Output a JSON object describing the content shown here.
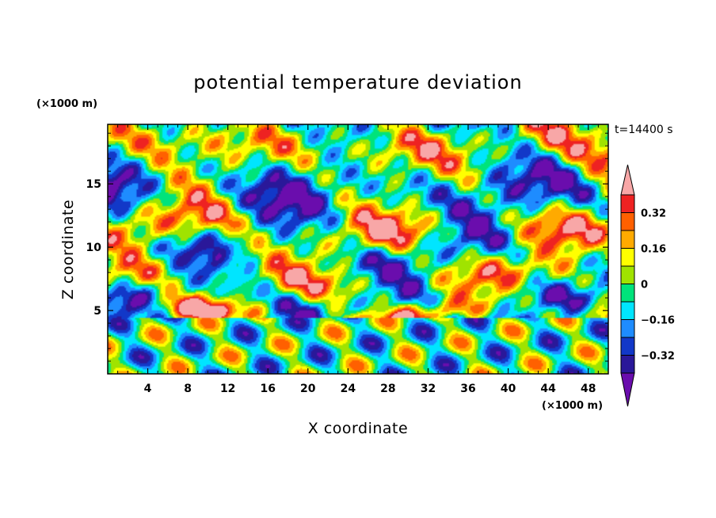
{
  "chart_data": {
    "type": "heatmap",
    "title": "potential temperature deviation",
    "xlabel": "X coordinate",
    "ylabel": "Z coordinate",
    "x_unit": "(×1000 m)",
    "y_unit": "(×1000 m)",
    "time_label": "t=14400 s",
    "xlim": [
      0,
      50
    ],
    "ylim": [
      0,
      19.7
    ],
    "x_ticks": [
      4,
      8,
      12,
      16,
      20,
      24,
      28,
      32,
      36,
      40,
      44,
      48
    ],
    "y_ticks": [
      5,
      10,
      15
    ],
    "colorbar": {
      "levels": [
        -0.4,
        -0.32,
        -0.24,
        -0.16,
        -0.08,
        0,
        0.08,
        0.16,
        0.24,
        0.32,
        0.4
      ],
      "labels": [
        "0.32",
        "0.16",
        "0",
        "−0.16",
        "−0.32"
      ],
      "label_values": [
        0.32,
        0.16,
        0,
        -0.16,
        -0.32
      ],
      "colors": [
        "#6a0dad",
        "#2a1899",
        "#1238c8",
        "#1e8cff",
        "#00e5ff",
        "#00e37b",
        "#a0e300",
        "#ffff00",
        "#ffaa00",
        "#ff6000",
        "#ee2222",
        "#f8a7a7"
      ],
      "extend": "both"
    }
  }
}
